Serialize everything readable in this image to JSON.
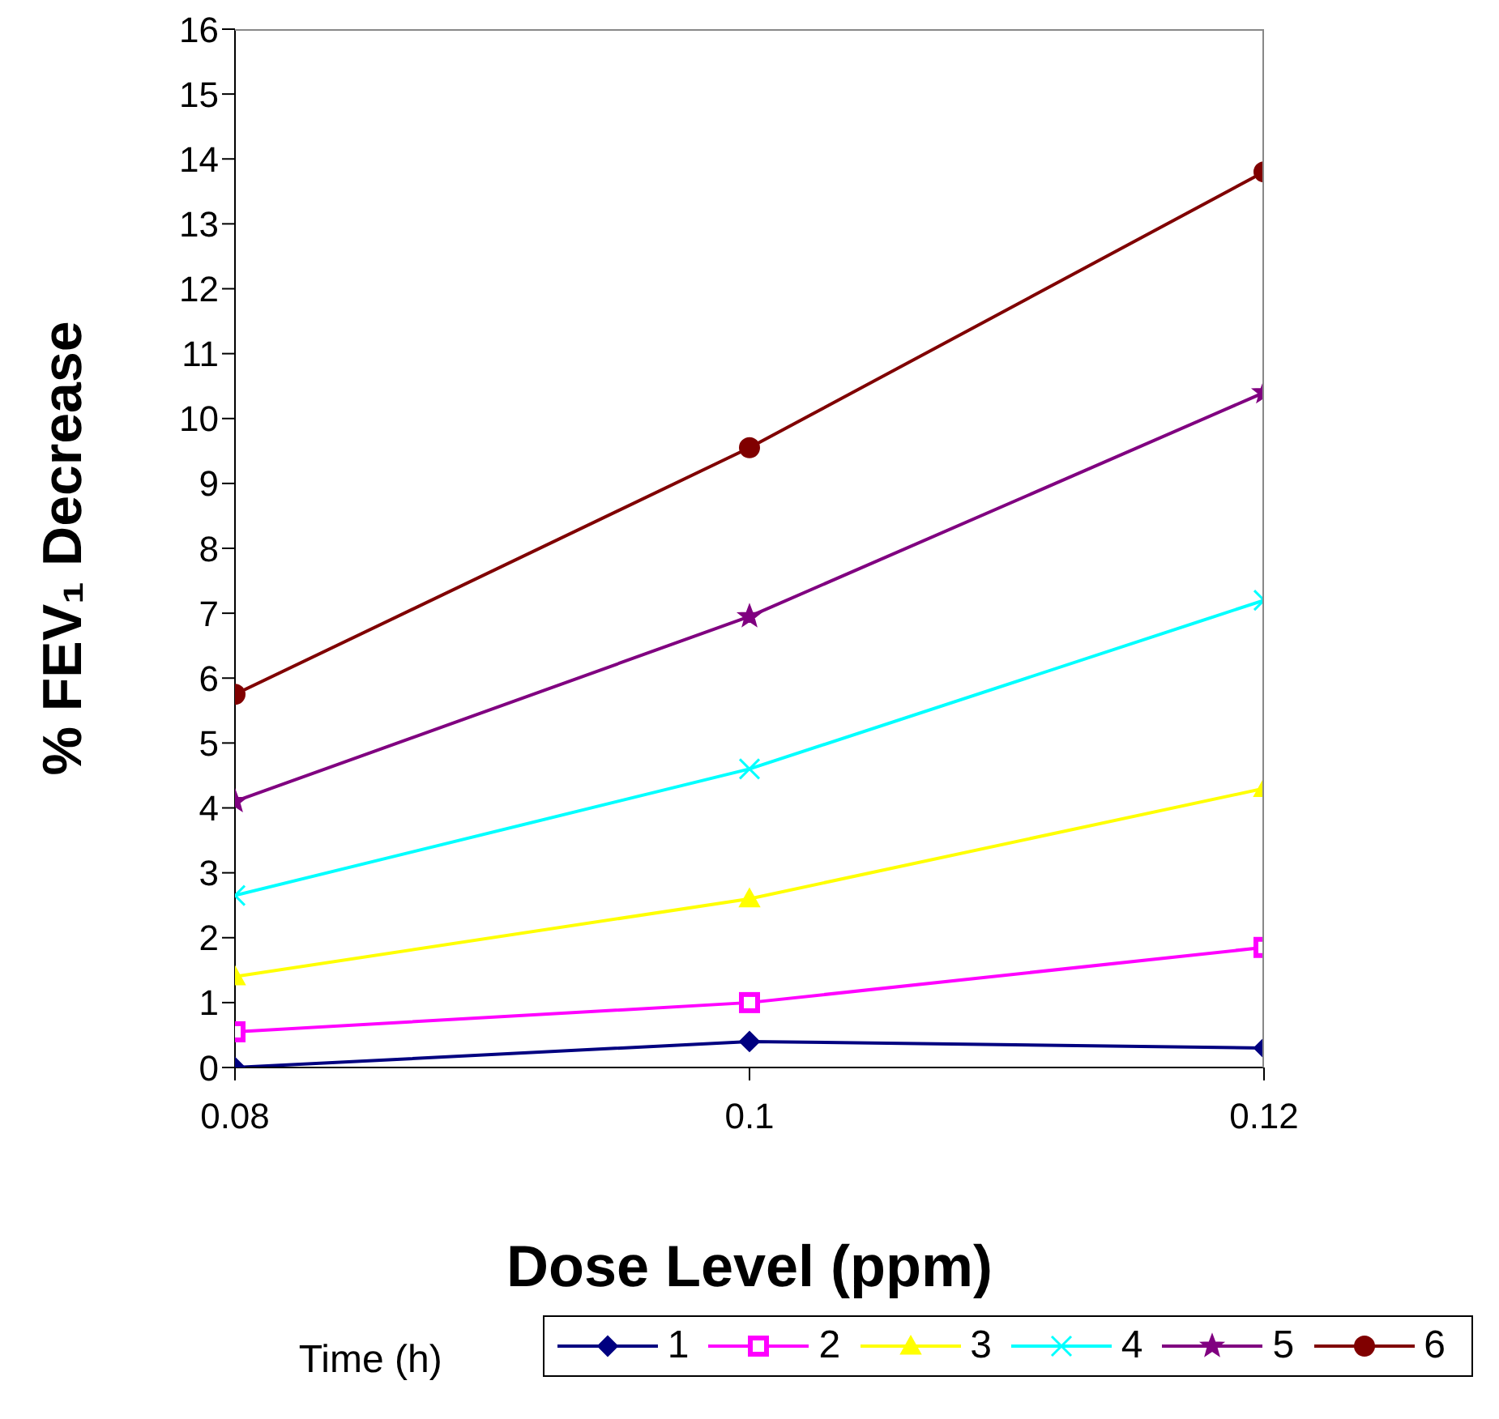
{
  "chart_data": {
    "type": "line",
    "xlabel": "Dose Level (ppm)",
    "ylabel": "% FEV₁ Decrease",
    "legend_title": "Time (h)",
    "legend": "bottom",
    "grid": false,
    "x": [
      0.08,
      0.1,
      0.12
    ],
    "xlim": [
      0.08,
      0.12
    ],
    "xticks": [
      0.08,
      0.1,
      0.12
    ],
    "ylim": [
      0,
      16
    ],
    "yticks": [
      0,
      1,
      2,
      3,
      4,
      5,
      6,
      7,
      8,
      9,
      10,
      11,
      12,
      13,
      14,
      15,
      16
    ],
    "series": [
      {
        "name": "1",
        "color": "#000080",
        "marker": "diamond",
        "values": [
          0.0,
          0.4,
          0.3
        ]
      },
      {
        "name": "2",
        "color": "#ff00ff",
        "marker": "square",
        "values": [
          0.55,
          1.0,
          1.85
        ]
      },
      {
        "name": "3",
        "color": "#ffff00",
        "marker": "triangle",
        "values": [
          1.4,
          2.6,
          4.3
        ]
      },
      {
        "name": "4",
        "color": "#00ffff",
        "marker": "cross",
        "values": [
          2.65,
          4.6,
          7.2
        ]
      },
      {
        "name": "5",
        "color": "#800080",
        "marker": "star",
        "values": [
          4.1,
          6.95,
          10.4
        ]
      },
      {
        "name": "6",
        "color": "#800000",
        "marker": "circle",
        "values": [
          5.75,
          9.55,
          13.8
        ]
      }
    ]
  }
}
